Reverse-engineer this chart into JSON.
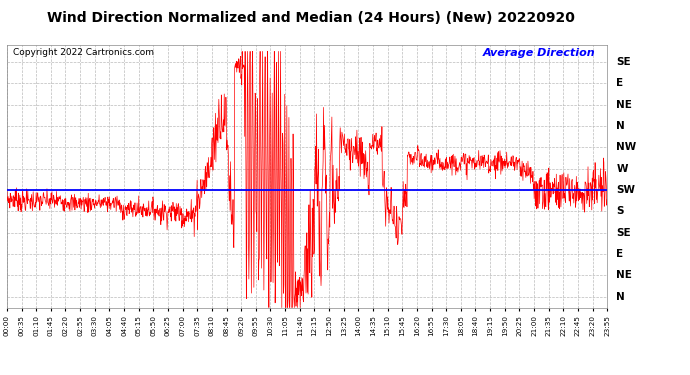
{
  "title": "Wind Direction Normalized and Median (24 Hours) (New) 20220920",
  "copyright_text": "Copyright 2022 Cartronics.com",
  "legend_text": "Average Direction",
  "background_color": "#ffffff",
  "grid_color": "#bbbbbb",
  "line_color": "#ff0000",
  "avg_line_color": "#0000ff",
  "title_fontsize": 10,
  "ytick_labels_right": [
    "SE",
    "E",
    "NE",
    "N",
    "NW",
    "W",
    "SW",
    "S",
    "SE",
    "E",
    "NE",
    "N"
  ],
  "ytick_values": [
    11,
    10,
    9,
    8,
    7,
    6,
    5,
    4,
    3,
    2,
    1,
    0
  ],
  "avg_line_y": 5.0,
  "ylim": [
    -0.5,
    11.8
  ],
  "xtick_labels": [
    "00:00",
    "00:35",
    "01:10",
    "01:45",
    "02:20",
    "02:55",
    "03:30",
    "04:05",
    "04:40",
    "05:15",
    "05:50",
    "06:25",
    "07:00",
    "07:35",
    "08:10",
    "08:45",
    "09:20",
    "09:55",
    "10:30",
    "11:05",
    "11:40",
    "12:15",
    "12:50",
    "13:25",
    "14:00",
    "14:35",
    "15:10",
    "15:45",
    "16:20",
    "16:55",
    "17:30",
    "18:05",
    "18:40",
    "19:15",
    "19:50",
    "20:25",
    "21:00",
    "21:35",
    "22:10",
    "22:45",
    "23:20",
    "23:55"
  ]
}
